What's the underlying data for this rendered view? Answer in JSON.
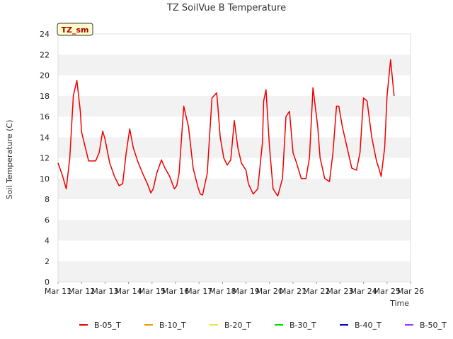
{
  "chart_data": {
    "type": "line",
    "title": "TZ SoilVue B Temperature",
    "xlabel": "Time",
    "ylabel": "Soil Temperature (C)",
    "ylim": [
      0,
      24
    ],
    "yticks": [
      0,
      2,
      4,
      6,
      8,
      10,
      12,
      14,
      16,
      18,
      20,
      22,
      24
    ],
    "xlim": [
      11,
      26
    ],
    "xticks": [
      {
        "v": 11,
        "label": "Mar 11"
      },
      {
        "v": 12,
        "label": "Mar 12"
      },
      {
        "v": 13,
        "label": "Mar 13"
      },
      {
        "v": 14,
        "label": "Mar 14"
      },
      {
        "v": 15,
        "label": "Mar 15"
      },
      {
        "v": 16,
        "label": "Mar 16"
      },
      {
        "v": 17,
        "label": "Mar 17"
      },
      {
        "v": 18,
        "label": "Mar 18"
      },
      {
        "v": 19,
        "label": "Mar 19"
      },
      {
        "v": 20,
        "label": "Mar 20"
      },
      {
        "v": 21,
        "label": "Mar 21"
      },
      {
        "v": 22,
        "label": "Mar 22"
      },
      {
        "v": 23,
        "label": "Mar 23"
      },
      {
        "v": 24,
        "label": "Mar 24"
      },
      {
        "v": 25,
        "label": "Mar 25"
      },
      {
        "v": 26,
        "label": "Mar 26"
      }
    ],
    "grid": "horizontal bands",
    "legend_position": "bottom",
    "annotation": "TZ_sm",
    "series": [
      {
        "name": "B-05_T",
        "color": "#ee0000",
        "x": [
          11.0,
          11.2,
          11.35,
          11.5,
          11.65,
          11.8,
          11.95,
          12.0,
          12.3,
          12.6,
          12.75,
          12.9,
          13.0,
          13.2,
          13.4,
          13.6,
          13.75,
          13.9,
          14.05,
          14.2,
          14.4,
          14.6,
          14.8,
          14.95,
          15.05,
          15.2,
          15.4,
          15.55,
          15.75,
          15.95,
          16.05,
          16.15,
          16.35,
          16.55,
          16.75,
          16.95,
          17.05,
          17.15,
          17.35,
          17.55,
          17.75,
          17.8,
          17.9,
          18.05,
          18.2,
          18.35,
          18.5,
          18.65,
          18.8,
          19.0,
          19.1,
          19.3,
          19.5,
          19.7,
          19.75,
          19.85,
          20.0,
          20.15,
          20.35,
          20.55,
          20.7,
          20.85,
          21.0,
          21.15,
          21.35,
          21.55,
          21.7,
          21.85,
          22.05,
          22.15,
          22.35,
          22.55,
          22.7,
          22.85,
          22.95,
          23.1,
          23.35,
          23.5,
          23.7,
          23.85,
          24.0,
          24.15,
          24.35,
          24.55,
          24.65,
          24.75,
          24.9,
          25.0,
          25.15,
          25.3
        ],
        "y": [
          11.5,
          10.2,
          9.0,
          12.0,
          18.0,
          19.5,
          16.5,
          14.5,
          11.7,
          11.7,
          12.5,
          14.6,
          13.8,
          11.5,
          10.2,
          9.3,
          9.5,
          12.5,
          14.8,
          13.0,
          11.6,
          10.5,
          9.5,
          8.6,
          9.0,
          10.5,
          11.8,
          11.0,
          10.2,
          9.0,
          9.3,
          10.5,
          17.0,
          15.0,
          11.0,
          9.2,
          8.5,
          8.4,
          10.5,
          17.8,
          18.3,
          17.0,
          14.0,
          12.0,
          11.3,
          11.8,
          15.6,
          13.0,
          11.5,
          10.8,
          9.5,
          8.5,
          9.0,
          13.5,
          17.5,
          18.6,
          13.0,
          9.0,
          8.3,
          10.0,
          16.0,
          16.5,
          12.5,
          11.5,
          10.0,
          10.0,
          12.0,
          18.8,
          15.0,
          12.0,
          10.0,
          9.7,
          12.5,
          17.0,
          17.0,
          15.0,
          12.5,
          11.0,
          10.8,
          12.5,
          17.8,
          17.5,
          14.0,
          11.7,
          11.0,
          10.2,
          13.0,
          18.0,
          21.5,
          18.0
        ]
      },
      {
        "name": "B-10_T",
        "color": "#e69f00",
        "x": [],
        "y": []
      },
      {
        "name": "B-20_T",
        "color": "#f0e442",
        "x": [],
        "y": []
      },
      {
        "name": "B-30_T",
        "color": "#00dd00",
        "x": [],
        "y": []
      },
      {
        "name": "B-40_T",
        "color": "#0000bb",
        "x": [],
        "y": []
      },
      {
        "name": "B-50_T",
        "color": "#9933ff",
        "x": [],
        "y": []
      }
    ]
  }
}
